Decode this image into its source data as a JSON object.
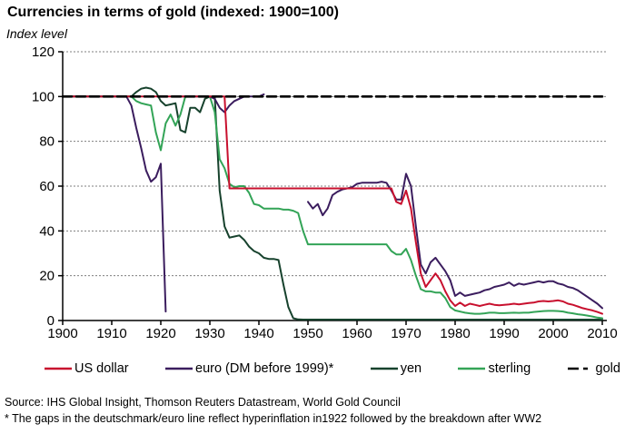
{
  "title": "Currencies in terms of gold (indexed: 1900=100)",
  "source": "Source: IHS Global Insight, Thomson Reuters Datastream, World Gold Council",
  "footnote": "* The gaps in the deutschmark/euro line reflect hyperinflation in1922 followed by the breakdown after WW2",
  "chart_data": {
    "type": "line",
    "title": "Currencies in terms of gold (indexed: 1900=100)",
    "xlabel": "",
    "ylabel": "Index level",
    "ylim": [
      0,
      120
    ],
    "y_ticks": [
      0,
      20,
      40,
      60,
      80,
      100,
      120
    ],
    "x_ticks": [
      1900,
      1910,
      1920,
      1930,
      1940,
      1950,
      1960,
      1970,
      1980,
      1990,
      2000,
      2010
    ],
    "x_start": 1900,
    "x_end": 2010,
    "grid": "dotted-horizontal",
    "legend_position": "bottom",
    "series": [
      {
        "name": "US dollar",
        "color": "#c8102e",
        "dash": null,
        "values": [
          100,
          100,
          100,
          100,
          100,
          100,
          100,
          100,
          100,
          100,
          100,
          100,
          100,
          100,
          100,
          100,
          100,
          100,
          100,
          100,
          100,
          100,
          100,
          100,
          100,
          100,
          100,
          100,
          100,
          100,
          100,
          100,
          100,
          100,
          59,
          59,
          59,
          59,
          59,
          59,
          59,
          59,
          59,
          59,
          59,
          59,
          59,
          59,
          59,
          59,
          59,
          59,
          59,
          59,
          59,
          59,
          59,
          59,
          59,
          59,
          59,
          59,
          59,
          59,
          59,
          59,
          59,
          59,
          53,
          52,
          58,
          50,
          35,
          21,
          15,
          18,
          21,
          18,
          13,
          9,
          6.5,
          8,
          6.5,
          7.5,
          7,
          6.5,
          7,
          7.5,
          7,
          6.8,
          7,
          7.2,
          7.5,
          7.2,
          7.5,
          7.8,
          8,
          8.5,
          8.7,
          8.5,
          8.7,
          9,
          8.5,
          7.5,
          7,
          6.3,
          5.5,
          5,
          4.5,
          3.8,
          3
        ]
      },
      {
        "name": "euro (DM before 1999)*",
        "color": "#3b1d5e",
        "dash": null,
        "values": [
          100,
          100,
          100,
          100,
          100,
          100,
          100,
          100,
          100,
          100,
          100,
          100,
          100,
          100,
          96,
          86,
          77,
          67,
          62,
          64,
          70,
          4,
          null,
          null,
          100,
          100,
          100,
          100,
          100,
          100,
          100,
          99,
          95,
          93,
          96,
          98,
          99,
          100,
          100,
          100,
          100,
          101,
          null,
          null,
          null,
          null,
          null,
          null,
          null,
          null,
          53,
          50,
          52,
          47,
          50,
          56,
          57.5,
          58.5,
          59,
          59.5,
          61,
          61.5,
          61.5,
          61.5,
          61.5,
          62,
          61.5,
          58,
          54,
          54,
          65.5,
          60,
          42,
          25,
          21,
          26,
          28,
          25,
          22,
          18,
          11,
          12.5,
          11,
          11.5,
          12,
          12.5,
          13.5,
          14,
          15,
          15.5,
          16,
          17,
          15.5,
          16.5,
          16,
          16.5,
          17,
          17.5,
          17,
          17.5,
          17.5,
          16.5,
          16,
          15,
          14.5,
          13.5,
          12,
          10.5,
          9,
          7.5,
          5.5
        ]
      },
      {
        "name": "yen",
        "color": "#17422d",
        "dash": null,
        "values": [
          100,
          100,
          100,
          100,
          100,
          100,
          100,
          100,
          100,
          100,
          100,
          100,
          100,
          100,
          100,
          102,
          103.5,
          104,
          103.5,
          102,
          98,
          96,
          96.5,
          97,
          85,
          84,
          95,
          95,
          93,
          99,
          100,
          100,
          58,
          42,
          37,
          37.5,
          38,
          36,
          33,
          31,
          30,
          28,
          27.5,
          27.5,
          27,
          16,
          6,
          1,
          0.5,
          0.4,
          0.4,
          0.4,
          0.4,
          0.4,
          0.4,
          0.4,
          0.4,
          0.4,
          0.4,
          0.4,
          0.4,
          0.4,
          0.4,
          0.4,
          0.4,
          0.4,
          0.4,
          0.4,
          0.4,
          0.4,
          0.4,
          0.4,
          0.4,
          0.4,
          0.4,
          0.4,
          0.4,
          0.4,
          0.4,
          0.4,
          0.4,
          0.4,
          0.4,
          0.4,
          0.4,
          0.4,
          0.4,
          0.4,
          0.4,
          0.4,
          0.4,
          0.4,
          0.4,
          0.4,
          0.4,
          0.4,
          0.4,
          0.4,
          0.4,
          0.4,
          0.4,
          0.4,
          0.4,
          0.4,
          0.4,
          0.4,
          0.4,
          0.4,
          0.4,
          0.4,
          0.4
        ]
      },
      {
        "name": "sterling",
        "color": "#33a457",
        "dash": null,
        "values": [
          100,
          100,
          100,
          100,
          100,
          100,
          100,
          100,
          100,
          100,
          100,
          100,
          100,
          100,
          100,
          98,
          97,
          96.5,
          96,
          84,
          76,
          88,
          92,
          87,
          92,
          100,
          100,
          100,
          100,
          100,
          100,
          93,
          72,
          68,
          61,
          59.5,
          60,
          60,
          57,
          52,
          51.5,
          50,
          50,
          50,
          50,
          49.5,
          49.5,
          49,
          48,
          40,
          34,
          34,
          34,
          34,
          34,
          34,
          34,
          34,
          34,
          34,
          34,
          34,
          34,
          34,
          34,
          34,
          34,
          31,
          29.5,
          29.5,
          32,
          27,
          20,
          14,
          13,
          13,
          12.5,
          12.5,
          10,
          6,
          4.5,
          4,
          3.5,
          3.2,
          3,
          3,
          3.2,
          3.5,
          3.5,
          3.3,
          3.3,
          3.4,
          3.5,
          3.4,
          3.5,
          3.5,
          3.8,
          4,
          4.2,
          4.3,
          4.3,
          4.2,
          4,
          3.5,
          3.2,
          2.8,
          2.5,
          2.2,
          1.8,
          1.3,
          1
        ]
      },
      {
        "name": "gold",
        "color": "#000000",
        "dash": "10 5",
        "constant": 100
      }
    ]
  }
}
